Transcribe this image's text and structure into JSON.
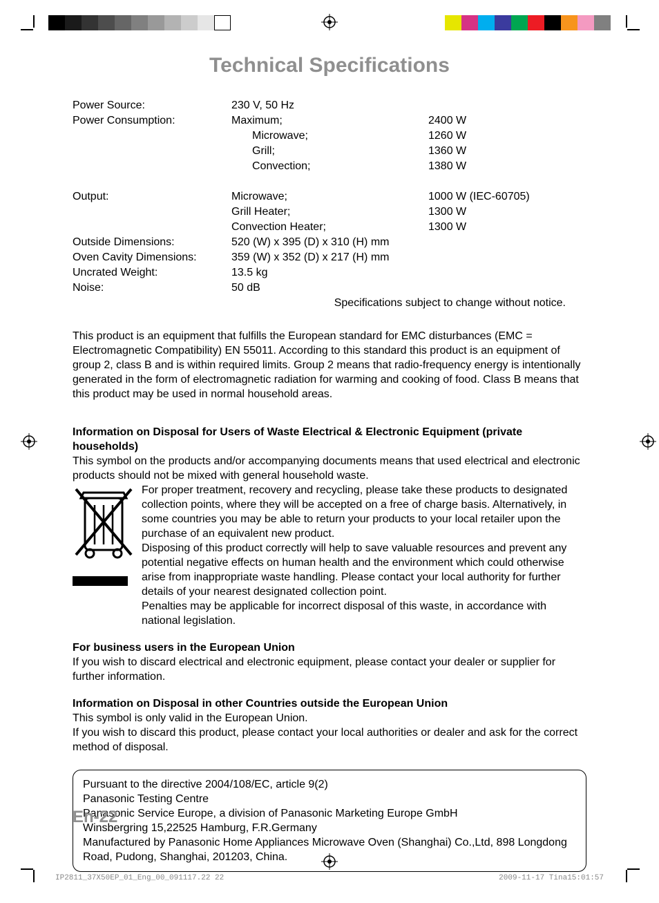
{
  "calibration": {
    "left_swatches": [
      "#000000",
      "#1a1a1a",
      "#333333",
      "#4d4d4d",
      "#666666",
      "#808080",
      "#999999",
      "#b3b3b3",
      "#cccccc",
      "#e6e6e6",
      "#ffffff"
    ],
    "right_swatches": [
      "#e6e600",
      "#d63384",
      "#00aeef",
      "#3b3b9e",
      "#00a651",
      "#ed1c24",
      "#000000",
      "#f7941d",
      "#f49ac1",
      "#808080"
    ]
  },
  "title": "Technical Specifications",
  "specs": {
    "power_source": {
      "label": "Power Source:",
      "value": "230 V, 50 Hz"
    },
    "power_consumption": {
      "label": "Power Consumption:",
      "rows": [
        {
          "sub": "Maximum;",
          "val": "2400 W"
        },
        {
          "sub": "Microwave;",
          "val": "1260 W"
        },
        {
          "sub": "Grill;",
          "val": "1360 W"
        },
        {
          "sub": "Convection;",
          "val": "1380 W"
        }
      ]
    },
    "output": {
      "label": "Output:",
      "rows": [
        {
          "sub": "Microwave;",
          "val": "1000 W (IEC-60705)"
        },
        {
          "sub": "Grill Heater;",
          "val": "1300 W"
        },
        {
          "sub": "Convection Heater;",
          "val": "1300 W"
        }
      ]
    },
    "outside_dim": {
      "label": "Outside Dimensions:",
      "value": "520 (W) x 395 (D) x 310 (H) mm"
    },
    "cavity_dim": {
      "label": "Oven Cavity Dimensions:",
      "value": "359 (W) x 352 (D) x 217 (H) mm"
    },
    "uncrated_weight": {
      "label": "Uncrated Weight:",
      "value": "13.5 kg"
    },
    "noise": {
      "label": "Noise:",
      "value": "50 dB"
    }
  },
  "change_notice": "Specifications subject to change without notice.",
  "emc_text": "This product is an equipment that fulfills the European standard for EMC disturbances (EMC = Electromagnetic Compatibility) EN 55011. According to this standard this product is an equipment of group 2, class B and is within required limits. Group 2 means that  radio-frequency energy is intentionally generated in the form of electromagnetic radiation for warming and cooking of food. Class B means that this product may be used in normal household areas.",
  "disposal": {
    "heading": "Information on Disposal for Users of Waste Electrical & Electronic Equipment (private households)",
    "intro": "This symbol on the products and/or accompanying documents means that used electrical and electronic products should not be mixed with general household waste.",
    "body1": "For proper treatment, recovery and recycling, please take these products to designated collection points, where they will be accepted on a free of charge basis. Alternatively, in some countries you may be able to return your products to your local retailer upon the purchase of an equivalent new product.",
    "body2": "Disposing of this product correctly will help to save valuable resources and prevent any potential negative effects on human health and the environment which could otherwise arise from inappropriate waste handling. Please contact your local authority for further details of your nearest designated collection point.",
    "body3": "Penalties may be applicable for incorrect disposal of this waste, in accordance with national legislation."
  },
  "business": {
    "heading": "For business users in the European Union",
    "text": "If you wish to discard electrical and electronic equipment, please contact your dealer or supplier for further information."
  },
  "outside_eu": {
    "heading": "Information on Disposal in other Countries outside the European Union",
    "text1": "This symbol is only valid in the European Union.",
    "text2": "If you wish to discard this product, please contact your local authorities or dealer and ask for the correct method of disposal."
  },
  "directive": {
    "line1": "Pursuant to the directive 2004/108/EC, article 9(2)",
    "line2": "Panasonic Testing Centre",
    "line3": "Panasonic Service Europe, a division of Panasonic Marketing Europe GmbH",
    "line4": "Winsbergring 15,22525 Hamburg, F.R.Germany",
    "line5": "Manufactured by Panasonic Home Appliances Microwave Oven (Shanghai) Co.,Ltd, 898 Longdong Road, Pudong, Shanghai, 201203, China."
  },
  "page_number": "En-22",
  "footer": {
    "left": "IP2811_37X50EP_01_Eng_00_091117.22   22",
    "right": "2009-11-17   Tina15:01:57"
  },
  "colors": {
    "title_gray": "#8f8f8f",
    "body_text": "#000000",
    "footer_gray": "#888888",
    "box_border": "#000000"
  }
}
